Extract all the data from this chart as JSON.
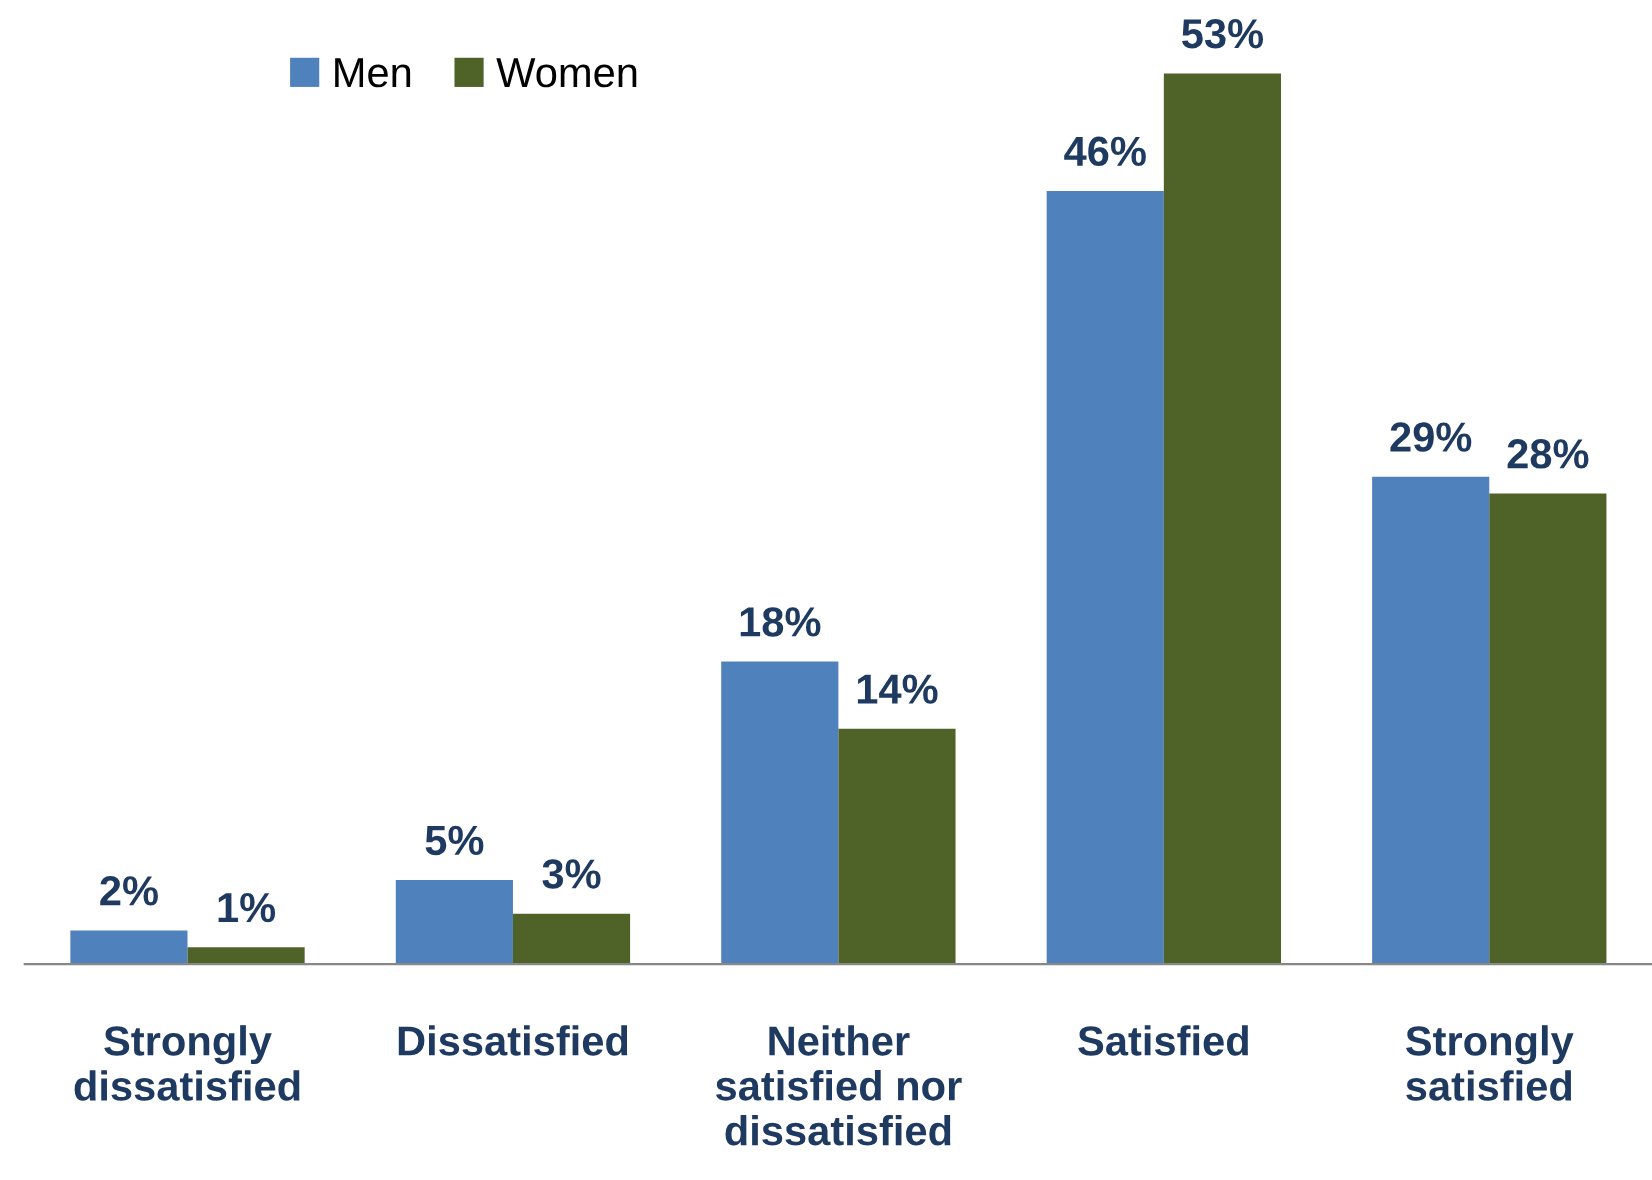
{
  "chart_data": {
    "type": "bar",
    "categories": [
      "Strongly\ndissatisfied",
      "Dissatisfied",
      "Neither\nsatisfied nor\ndissatisfied",
      "Satisfied",
      "Strongly\nsatisfied"
    ],
    "series": [
      {
        "name": "Men",
        "color": "#4f81bd",
        "values": [
          2,
          5,
          18,
          46,
          29
        ],
        "value_labels": [
          "2%",
          "5%",
          "18%",
          "46%",
          "29%"
        ]
      },
      {
        "name": "Women",
        "color": "#4f6228",
        "values": [
          1,
          3,
          14,
          53,
          28
        ],
        "value_labels": [
          "1%",
          "3%",
          "14%",
          "53%",
          "28%"
        ]
      }
    ],
    "legend": "top left",
    "grid": false
  }
}
